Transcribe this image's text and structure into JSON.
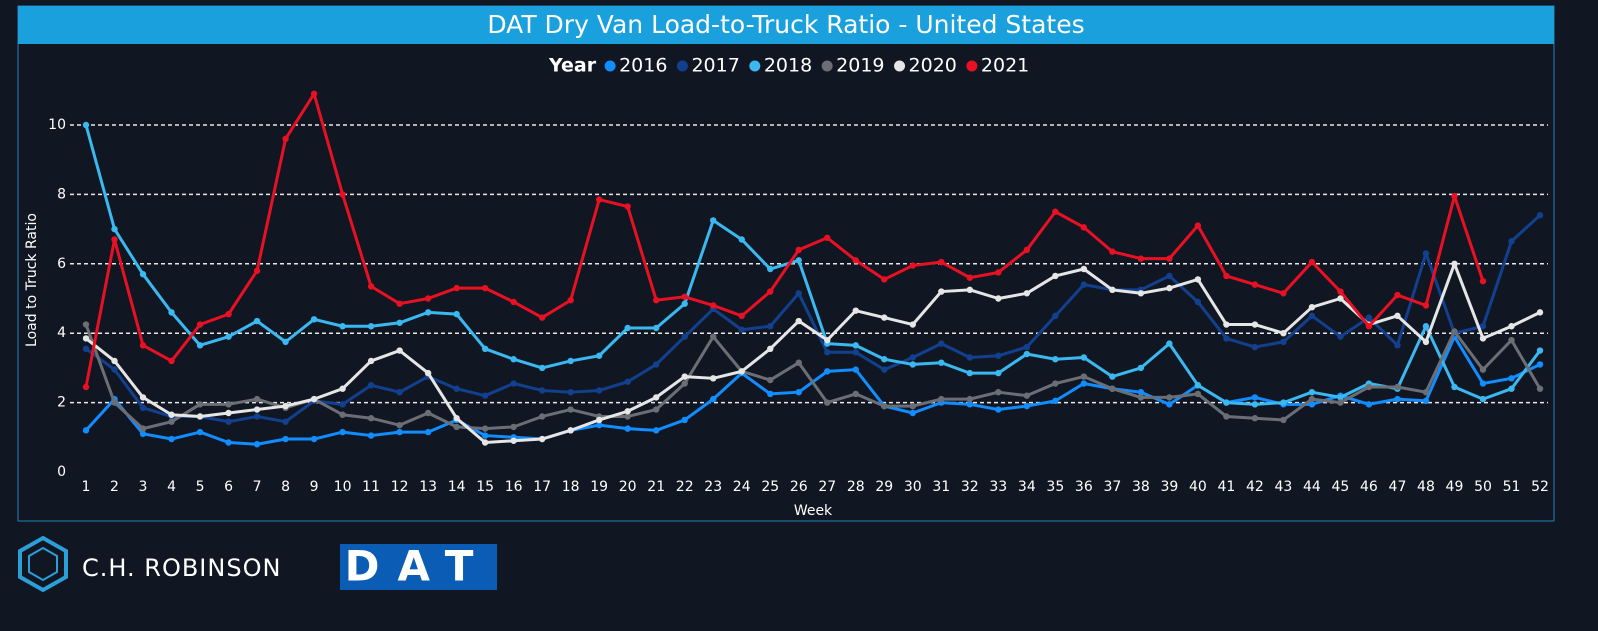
{
  "chart_data": {
    "type": "line",
    "title": "DAT Dry Van Load-to-Truck Ratio - United States",
    "legend_title": "Year",
    "x_label": "Week",
    "y_label": "Load to Truck Ratio",
    "categories": [
      1,
      2,
      3,
      4,
      5,
      6,
      7,
      8,
      9,
      10,
      11,
      12,
      13,
      14,
      15,
      16,
      17,
      18,
      19,
      20,
      21,
      22,
      23,
      24,
      25,
      26,
      27,
      28,
      29,
      30,
      31,
      32,
      33,
      34,
      35,
      36,
      37,
      38,
      39,
      40,
      41,
      42,
      43,
      44,
      45,
      46,
      47,
      48,
      49,
      50,
      51,
      52
    ],
    "ylim": [
      0,
      11.2
    ],
    "yticks": [
      0,
      2,
      4,
      6,
      8,
      10
    ],
    "grid": true,
    "series": [
      {
        "name": "2016",
        "color": "#118dff",
        "values": [
          1.2,
          2.1,
          1.1,
          0.95,
          1.15,
          0.85,
          0.8,
          0.95,
          0.95,
          1.15,
          1.05,
          1.15,
          1.15,
          1.5,
          1.05,
          1.0,
          0.95,
          1.2,
          1.35,
          1.25,
          1.2,
          1.5,
          2.1,
          2.85,
          2.25,
          2.3,
          2.9,
          2.95,
          1.9,
          1.7,
          2.0,
          1.95,
          1.8,
          1.9,
          2.05,
          2.55,
          2.4,
          2.3,
          1.95,
          2.5,
          2.0,
          2.15,
          1.95,
          1.95,
          2.2,
          1.95,
          2.1,
          2.05,
          3.9,
          2.55,
          2.7,
          3.1
        ]
      },
      {
        "name": "2017",
        "color": "#12408f",
        "values": [
          3.55,
          2.95,
          1.85,
          1.6,
          1.6,
          1.45,
          1.6,
          1.45,
          2.05,
          1.95,
          2.5,
          2.3,
          2.75,
          2.4,
          2.2,
          2.55,
          2.35,
          2.3,
          2.35,
          2.6,
          3.1,
          3.9,
          4.7,
          4.1,
          4.2,
          5.15,
          3.45,
          3.45,
          2.95,
          3.3,
          3.7,
          3.3,
          3.35,
          3.6,
          4.5,
          5.4,
          5.25,
          5.25,
          5.65,
          4.9,
          3.85,
          3.6,
          3.75,
          4.5,
          3.9,
          4.45,
          3.65,
          6.3,
          4.0,
          4.2,
          6.65,
          7.4
        ]
      },
      {
        "name": "2018",
        "color": "#3bb8f0",
        "values": [
          10.0,
          7.0,
          5.7,
          4.6,
          3.65,
          3.9,
          4.35,
          3.75,
          4.4,
          4.2,
          4.2,
          4.3,
          4.6,
          4.55,
          3.55,
          3.25,
          3.0,
          3.2,
          3.35,
          4.15,
          4.15,
          4.85,
          7.25,
          6.7,
          5.85,
          6.1,
          3.7,
          3.65,
          3.25,
          3.1,
          3.15,
          2.85,
          2.85,
          3.4,
          3.25,
          3.3,
          2.75,
          3.0,
          3.7,
          2.5,
          2.0,
          1.95,
          2.0,
          2.3,
          2.15,
          2.55,
          2.4,
          4.2,
          2.45,
          2.1,
          2.4,
          3.5
        ]
      },
      {
        "name": "2019",
        "color": "#6b6f75",
        "values": [
          4.25,
          2.0,
          1.25,
          1.45,
          1.95,
          1.95,
          2.1,
          1.85,
          2.1,
          1.65,
          1.55,
          1.35,
          1.7,
          1.3,
          1.25,
          1.3,
          1.6,
          1.8,
          1.6,
          1.6,
          1.8,
          2.55,
          3.9,
          2.9,
          2.65,
          3.15,
          2.0,
          2.25,
          1.9,
          1.9,
          2.1,
          2.1,
          2.3,
          2.2,
          2.55,
          2.75,
          2.4,
          2.15,
          2.15,
          2.25,
          1.6,
          1.55,
          1.5,
          2.1,
          2.0,
          2.45,
          2.45,
          2.3,
          4.05,
          2.95,
          3.8,
          2.4
        ]
      },
      {
        "name": "2020",
        "color": "#e6e6e6",
        "values": [
          3.85,
          3.2,
          2.15,
          1.65,
          1.6,
          1.7,
          1.8,
          1.9,
          2.1,
          2.4,
          3.2,
          3.5,
          2.85,
          1.55,
          0.85,
          0.9,
          0.95,
          1.2,
          1.5,
          1.75,
          2.15,
          2.75,
          2.7,
          2.9,
          3.55,
          4.35,
          3.8,
          4.65,
          4.45,
          4.25,
          5.2,
          5.25,
          5.0,
          5.15,
          5.65,
          5.85,
          5.25,
          5.15,
          5.3,
          5.55,
          4.25,
          4.25,
          4.0,
          4.75,
          5.0,
          4.25,
          4.5,
          3.75,
          6.0,
          3.85,
          4.2,
          4.6
        ]
      },
      {
        "name": "2021",
        "color": "#e81123",
        "values": [
          2.45,
          6.7,
          3.65,
          3.2,
          4.25,
          4.55,
          5.8,
          9.6,
          10.9,
          8.0,
          5.35,
          4.85,
          5.0,
          5.3,
          5.3,
          4.9,
          4.45,
          4.95,
          7.85,
          7.65,
          4.95,
          5.05,
          4.8,
          4.5,
          5.2,
          6.4,
          6.75,
          6.1,
          5.55,
          5.95,
          6.05,
          5.6,
          5.75,
          6.4,
          7.5,
          7.05,
          6.35,
          6.15,
          6.15,
          7.1,
          5.65,
          5.4,
          5.15,
          6.05,
          5.2,
          4.2,
          5.1,
          4.8,
          7.95,
          5.5,
          null,
          null
        ]
      }
    ]
  },
  "footer": {
    "left_logo": "C.H. ROBINSON",
    "right_logo": "DAT"
  }
}
